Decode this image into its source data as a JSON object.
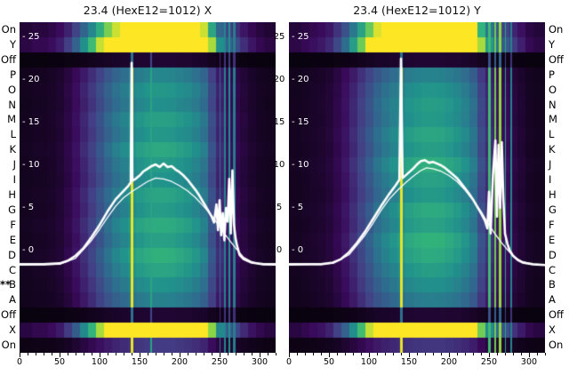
{
  "figure": {
    "background": "#ffffff"
  },
  "row_labels": [
    "On",
    "Y",
    "Off",
    "P",
    "O",
    "N",
    "M",
    "L",
    "K",
    "J",
    "I",
    "H",
    "G",
    "F",
    "E",
    "D",
    "C",
    "B",
    "A",
    "Off",
    "X",
    "On"
  ],
  "marker": {
    "text": "**",
    "row_index": 17
  },
  "colors": {
    "curve": "#ffffff",
    "tick_text_inner": "#ffffff",
    "text": "#000000",
    "background": "#ffffff"
  },
  "colormap": [
    [
      0.0,
      "#08020d"
    ],
    [
      0.12,
      "#3a0a5c"
    ],
    [
      0.25,
      "#433e85"
    ],
    [
      0.4,
      "#30688e"
    ],
    [
      0.55,
      "#21918c"
    ],
    [
      0.7,
      "#35b779"
    ],
    [
      0.85,
      "#90d743"
    ],
    [
      1.0,
      "#fde725"
    ]
  ],
  "chart_data": [
    {
      "type": "heatmap",
      "title": "23.4 (HexE12=1012) X",
      "x_ticks": [
        0,
        50,
        100,
        150,
        200,
        250,
        300
      ],
      "y_ticks": [
        25,
        20,
        15,
        10,
        5,
        0
      ],
      "xlim": [
        0,
        320
      ],
      "x_step": 10,
      "profile": [
        0.04,
        0.04,
        0.05,
        0.05,
        0.06,
        0.08,
        0.12,
        0.18,
        0.26,
        0.34,
        0.44,
        0.54,
        0.62,
        0.68,
        0.73,
        0.77,
        0.8,
        0.82,
        0.82,
        0.81,
        0.78,
        0.75,
        0.7,
        0.62,
        0.42,
        0.26,
        0.18,
        0.14,
        0.1,
        0.07,
        0.05,
        0.04,
        0.04
      ],
      "row_gains": [
        1.5,
        2.1,
        0.07,
        0.62,
        0.7,
        0.66,
        0.74,
        0.7,
        0.78,
        0.72,
        0.68,
        0.76,
        0.72,
        0.8,
        0.74,
        0.82,
        0.76,
        0.68,
        0.6,
        0.07,
        2.0,
        0.3
      ],
      "vlines": [
        {
          "x": 140,
          "w": 3,
          "v": 0.97
        },
        {
          "x": 164,
          "w": 2,
          "v": 0.62
        },
        {
          "x": 250,
          "w": 2,
          "v": 0.42
        },
        {
          "x": 256,
          "w": 2,
          "v": 0.5
        },
        {
          "x": 262,
          "w": 2,
          "v": 0.55
        },
        {
          "x": 268,
          "w": 3,
          "v": 0.48
        }
      ],
      "curves": [
        {
          "name": "profile-thin",
          "width": 1.3,
          "points": [
            [
              0,
              -1.7
            ],
            [
              50,
              -1.6
            ],
            [
              70,
              -0.9
            ],
            [
              90,
              1.2
            ],
            [
              100,
              2.5
            ],
            [
              110,
              3.9
            ],
            [
              120,
              5.2
            ],
            [
              130,
              6.2
            ],
            [
              140,
              6.9
            ],
            [
              150,
              7.5
            ],
            [
              160,
              8.1
            ],
            [
              170,
              8.5
            ],
            [
              180,
              8.4
            ],
            [
              190,
              8.1
            ],
            [
              200,
              7.6
            ],
            [
              210,
              7.0
            ],
            [
              220,
              6.2
            ],
            [
              230,
              5.2
            ],
            [
              240,
              4.1
            ],
            [
              250,
              2.8
            ],
            [
              260,
              1.5
            ],
            [
              270,
              0.3
            ],
            [
              280,
              -0.8
            ],
            [
              290,
              -1.3
            ],
            [
              300,
              -1.6
            ],
            [
              320,
              -1.7
            ]
          ]
        },
        {
          "name": "profile-thick",
          "width": 2.6,
          "points": [
            [
              0,
              -1.6
            ],
            [
              30,
              -1.6
            ],
            [
              50,
              -1.5
            ],
            [
              60,
              -1.2
            ],
            [
              70,
              -0.6
            ],
            [
              80,
              0.3
            ],
            [
              90,
              1.6
            ],
            [
              100,
              3.0
            ],
            [
              110,
              4.6
            ],
            [
              120,
              6.0
            ],
            [
              130,
              7.0
            ],
            [
              136,
              7.6
            ],
            [
              139,
              8.0
            ],
            [
              140,
              22.0
            ],
            [
              141,
              8.2
            ],
            [
              145,
              8.4
            ],
            [
              150,
              8.8
            ],
            [
              155,
              9.3
            ],
            [
              160,
              9.6
            ],
            [
              165,
              9.9
            ],
            [
              170,
              10.1
            ],
            [
              175,
              9.8
            ],
            [
              180,
              10.2
            ],
            [
              185,
              9.8
            ],
            [
              190,
              9.9
            ],
            [
              195,
              9.5
            ],
            [
              200,
              9.2
            ],
            [
              205,
              8.8
            ],
            [
              210,
              8.3
            ],
            [
              215,
              7.7
            ],
            [
              220,
              7.1
            ],
            [
              225,
              6.4
            ],
            [
              230,
              5.6
            ],
            [
              235,
              4.8
            ],
            [
              240,
              4.0
            ],
            [
              243,
              3.3
            ],
            [
              246,
              5.4
            ],
            [
              248,
              2.4
            ],
            [
              250,
              5.9
            ],
            [
              252,
              1.8
            ],
            [
              254,
              4.4
            ],
            [
              256,
              1.2
            ],
            [
              258,
              5.0
            ],
            [
              260,
              3.4
            ],
            [
              262,
              8.4
            ],
            [
              264,
              2.0
            ],
            [
              266,
              9.4
            ],
            [
              268,
              3.0
            ],
            [
              270,
              1.4
            ],
            [
              272,
              0.5
            ],
            [
              275,
              -0.5
            ],
            [
              280,
              -1.0
            ],
            [
              290,
              -1.4
            ],
            [
              305,
              -1.6
            ],
            [
              320,
              -1.6
            ]
          ]
        }
      ]
    },
    {
      "type": "heatmap",
      "title": "23.4 (HexE12=1012) Y",
      "x_ticks": [
        0,
        50,
        100,
        150,
        200,
        250,
        300
      ],
      "y_ticks": [
        25,
        20,
        15,
        10,
        5,
        0
      ],
      "xlim": [
        0,
        320
      ],
      "x_step": 10,
      "profile": [
        0.04,
        0.04,
        0.05,
        0.06,
        0.07,
        0.09,
        0.13,
        0.19,
        0.27,
        0.36,
        0.46,
        0.56,
        0.63,
        0.69,
        0.74,
        0.78,
        0.81,
        0.83,
        0.83,
        0.82,
        0.79,
        0.75,
        0.69,
        0.6,
        0.4,
        0.27,
        0.2,
        0.16,
        0.11,
        0.08,
        0.05,
        0.04,
        0.04
      ],
      "row_gains": [
        1.7,
        2.2,
        0.07,
        0.6,
        0.68,
        0.72,
        0.7,
        0.76,
        0.72,
        0.8,
        0.74,
        0.7,
        0.78,
        0.74,
        0.82,
        0.78,
        0.72,
        0.66,
        0.58,
        0.07,
        2.0,
        0.28
      ],
      "vlines": [
        {
          "x": 140,
          "w": 3,
          "v": 0.97
        },
        {
          "x": 250,
          "w": 3,
          "v": 0.72
        },
        {
          "x": 257,
          "w": 2,
          "v": 0.8
        },
        {
          "x": 263,
          "w": 3,
          "v": 0.85
        },
        {
          "x": 270,
          "w": 2,
          "v": 0.62
        },
        {
          "x": 277,
          "w": 2,
          "v": 0.5
        }
      ],
      "curves": [
        {
          "name": "profile-thin",
          "width": 1.3,
          "points": [
            [
              0,
              -1.7
            ],
            [
              55,
              -1.5
            ],
            [
              75,
              -0.5
            ],
            [
              95,
              1.8
            ],
            [
              105,
              3.2
            ],
            [
              115,
              4.7
            ],
            [
              125,
              6.0
            ],
            [
              135,
              7.0
            ],
            [
              145,
              7.9
            ],
            [
              155,
              8.7
            ],
            [
              165,
              9.4
            ],
            [
              172,
              9.7
            ],
            [
              180,
              9.6
            ],
            [
              190,
              9.3
            ],
            [
              200,
              8.8
            ],
            [
              210,
              8.1
            ],
            [
              220,
              7.1
            ],
            [
              230,
              5.9
            ],
            [
              240,
              4.6
            ],
            [
              250,
              3.0
            ],
            [
              258,
              1.9
            ],
            [
              266,
              0.9
            ],
            [
              274,
              0.0
            ],
            [
              282,
              -0.8
            ],
            [
              292,
              -1.3
            ],
            [
              305,
              -1.6
            ],
            [
              320,
              -1.7
            ]
          ]
        },
        {
          "name": "profile-thick",
          "width": 2.6,
          "points": [
            [
              0,
              -1.6
            ],
            [
              40,
              -1.6
            ],
            [
              55,
              -1.4
            ],
            [
              65,
              -1.0
            ],
            [
              75,
              -0.2
            ],
            [
              85,
              0.9
            ],
            [
              95,
              2.2
            ],
            [
              105,
              3.7
            ],
            [
              115,
              5.2
            ],
            [
              125,
              6.6
            ],
            [
              133,
              7.6
            ],
            [
              138,
              8.3
            ],
            [
              140,
              22.5
            ],
            [
              142,
              8.5
            ],
            [
              148,
              9.0
            ],
            [
              155,
              9.6
            ],
            [
              160,
              10.1
            ],
            [
              165,
              10.5
            ],
            [
              170,
              10.6
            ],
            [
              175,
              10.3
            ],
            [
              180,
              10.4
            ],
            [
              185,
              10.2
            ],
            [
              190,
              10.0
            ],
            [
              195,
              9.7
            ],
            [
              200,
              9.3
            ],
            [
              205,
              8.9
            ],
            [
              210,
              8.5
            ],
            [
              215,
              7.9
            ],
            [
              220,
              7.3
            ],
            [
              225,
              6.7
            ],
            [
              230,
              6.0
            ],
            [
              235,
              5.2
            ],
            [
              240,
              4.4
            ],
            [
              245,
              3.5
            ],
            [
              248,
              2.6
            ],
            [
              250,
              6.9
            ],
            [
              252,
              2.0
            ],
            [
              255,
              8.9
            ],
            [
              258,
              12.9
            ],
            [
              260,
              4.0
            ],
            [
              262,
              12.4
            ],
            [
              264,
              5.0
            ],
            [
              266,
              12.7
            ],
            [
              268,
              6.0
            ],
            [
              270,
              2.0
            ],
            [
              273,
              0.8
            ],
            [
              276,
              0.0
            ],
            [
              280,
              -0.6
            ],
            [
              286,
              -1.1
            ],
            [
              292,
              -1.4
            ],
            [
              305,
              -1.6
            ],
            [
              320,
              -1.7
            ]
          ]
        }
      ]
    }
  ]
}
